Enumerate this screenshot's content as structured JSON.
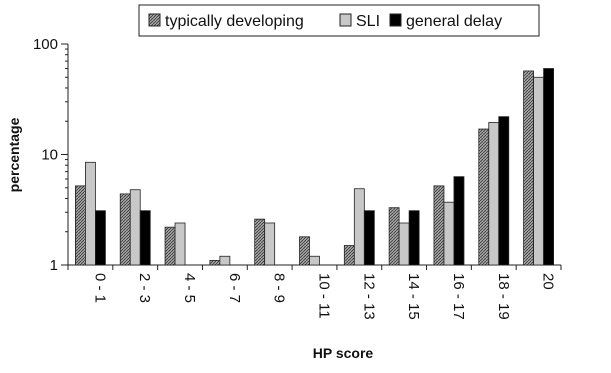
{
  "chart_data": {
    "type": "bar",
    "title": "",
    "xlabel": "HP score",
    "ylabel": "percentage",
    "y_scale": "log",
    "ylim": [
      1,
      100
    ],
    "y_ticks": [
      1,
      10,
      100
    ],
    "y_tick_labels": [
      "1",
      "10",
      "100"
    ],
    "grid": false,
    "legend_position": "top",
    "categories": [
      "0 - 1",
      "2 - 3",
      "4 - 5",
      "6 - 7",
      "8 - 9",
      "10 - 11",
      "12 - 13",
      "14 - 15",
      "16 - 17",
      "18 - 19",
      "20"
    ],
    "series": [
      {
        "name": "typically developing",
        "fill": "hatch",
        "values": [
          5.2,
          4.4,
          2.2,
          1.1,
          2.6,
          1.8,
          1.5,
          3.3,
          5.2,
          17.0,
          57.0
        ]
      },
      {
        "name": "SLI",
        "fill": "#c8c8c8",
        "values": [
          8.5,
          4.8,
          2.4,
          1.2,
          2.4,
          1.2,
          4.9,
          2.4,
          3.7,
          19.5,
          50.0
        ]
      },
      {
        "name": "general delay",
        "fill": "#000000",
        "values": [
          3.1,
          3.1,
          null,
          null,
          null,
          null,
          3.1,
          3.1,
          6.3,
          22.0,
          60.0
        ]
      }
    ]
  }
}
